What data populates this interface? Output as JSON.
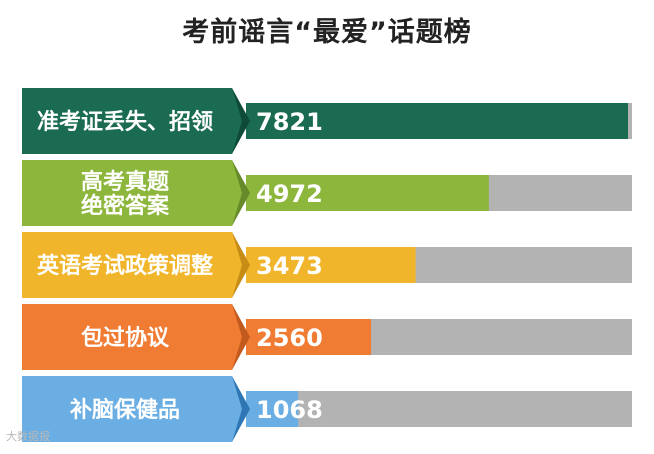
{
  "title": "考前谣言“最爱”话题榜",
  "watermark": "大数据报",
  "chart_data": {
    "type": "bar",
    "orientation": "horizontal",
    "title": "考前谣言“最爱”话题榜",
    "categories": [
      "准考证丢失、招领",
      "高考真题\n绝密答案",
      "英语考试政策调整",
      "包过协议",
      "补脑保健品"
    ],
    "values": [
      7821,
      4972,
      3473,
      2560,
      1068
    ],
    "xlim": [
      0,
      8000
    ],
    "colors": {
      "tab": [
        "#1b6b52",
        "#8cb63c",
        "#f0b52a",
        "#f07b32",
        "#6aaee3"
      ],
      "tab_shadow": [
        "#0f4a38",
        "#66892a",
        "#c58c16",
        "#c35a1d",
        "#2f76b5"
      ],
      "bar": [
        "#1b6b52",
        "#8cb63c",
        "#f0b52a",
        "#f07b32",
        "#6aaee3"
      ],
      "track": "#b3b3b3"
    },
    "grid": false,
    "legend": "none"
  }
}
